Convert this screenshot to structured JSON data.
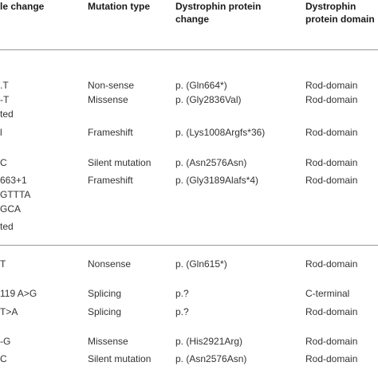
{
  "table": {
    "headers": {
      "nucleotide_change": "le change",
      "mutation_type": "Mutation type",
      "protein_change_l1": "Dystrophin protein",
      "protein_change_l2": "change",
      "domain_l1": "Dystrophin",
      "domain_l2": "protein domain"
    },
    "rows": [
      {
        "nucleotide": ".T",
        "type": "Non-sense",
        "protein": "p. (Gln664*)",
        "domain": "Rod-domain"
      },
      {
        "nucleotide": "-T",
        "type": "Missense",
        "protein": "p. (Gly2836Val)",
        "domain": "Rod-domain"
      },
      {
        "nucleotide": "ted",
        "type": "",
        "protein": "",
        "domain": ""
      },
      {
        "nucleotide": "l",
        "type": "Frameshift",
        "protein": "p. (Lys1008Argfs*36)",
        "domain": "Rod-domain"
      },
      {
        "nucleotide": "C",
        "type": "Silent mutation",
        "protein": "p. (Asn2576Asn)",
        "domain": "Rod-domain"
      },
      {
        "nucleotide": "663+1",
        "type": "Frameshift",
        "protein": "p. (Gly3189Alafs*4)",
        "domain": "Rod-domain"
      },
      {
        "nucleotide": "GTTTA",
        "type": "",
        "protein": "",
        "domain": ""
      },
      {
        "nucleotide": "GCA",
        "type": "",
        "protein": "",
        "domain": ""
      },
      {
        "nucleotide": "ted",
        "type": "",
        "protein": "",
        "domain": ""
      },
      {
        "nucleotide": "T",
        "type": "Nonsense",
        "protein": "p. (Gln615*)",
        "domain": "Rod-domain"
      },
      {
        "nucleotide": "119 A>G",
        "type": "Splicing",
        "protein": "p.?",
        "domain": "C-terminal"
      },
      {
        "nucleotide": "T>A",
        "type": "Splicing",
        "protein": "p.?",
        "domain": "Rod-domain"
      },
      {
        "nucleotide": "-G",
        "type": "Missense",
        "protein": "p. (His2921Arg)",
        "domain": "Rod-domain"
      },
      {
        "nucleotide": "C",
        "type": "Silent mutation",
        "protein": "p. (Asn2576Asn)",
        "domain": "Rod-domain"
      }
    ]
  },
  "colors": {
    "text": "#333333",
    "header_text": "#1a1a1a",
    "rule": "#999999",
    "background": "#ffffff"
  }
}
